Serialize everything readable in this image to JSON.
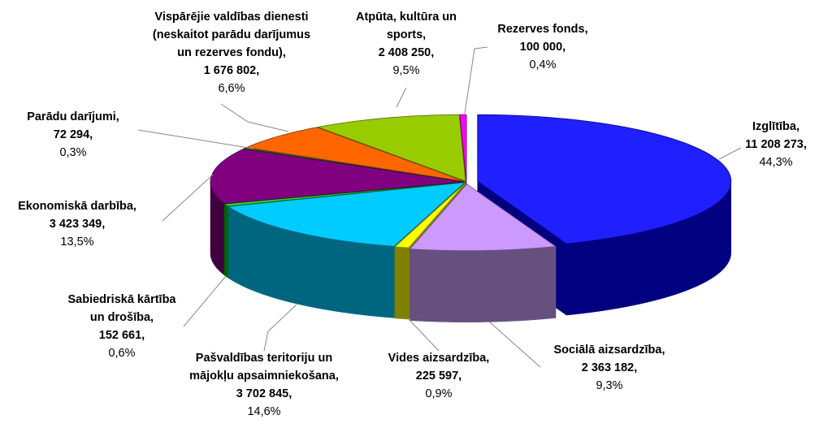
{
  "chart_data": {
    "type": "pie",
    "style": "3d-exploded",
    "start": "12 o'clock, clockwise",
    "slices": [
      {
        "label_lines": [
          "Izglītība,"
        ],
        "value": "11 208 273,",
        "percent": "44,3%",
        "pct": 44.3,
        "color": "#2020FF",
        "side": "#000080"
      },
      {
        "label_lines": [
          "Sociālā aizsardzība,"
        ],
        "value": "2 363 182,",
        "percent": "9,3%",
        "pct": 9.3,
        "color": "#CC99FF",
        "side": "#66507F"
      },
      {
        "label_lines": [
          "Vides aizsardzība,"
        ],
        "value": "225 597,",
        "percent": "0,9%",
        "pct": 0.9,
        "color": "#FFFF00",
        "side": "#808000"
      },
      {
        "label_lines": [
          "Pašvaldības teritoriju un",
          "mājokļu apsaimniekošana,"
        ],
        "value": "3 702 845,",
        "percent": "14,6%",
        "pct": 14.6,
        "color": "#00CCFF",
        "side": "#006680"
      },
      {
        "label_lines": [
          "Sabiedriskā kārtība",
          "un drošība,"
        ],
        "value": "152 661,",
        "percent": "0,6%",
        "pct": 0.6,
        "color": "#33CC33",
        "side": "#006600"
      },
      {
        "label_lines": [
          "Ekonomiskā darbība,"
        ],
        "value": "3 423 349,",
        "percent": "13,5%",
        "pct": 13.5,
        "color": "#800080",
        "side": "#400040"
      },
      {
        "label_lines": [
          "Parādu darījumi,"
        ],
        "value": "72 294,",
        "percent": "0,3%",
        "pct": 0.3,
        "color": "#336633",
        "side": "#1A331A"
      },
      {
        "label_lines": [
          "Vispārējie valdības dienesti",
          "(neskaitot parādu darījumus",
          "un rezerves fondu),"
        ],
        "value": "1 676 802,",
        "percent": "6,6%",
        "pct": 6.6,
        "color": "#FF6600",
        "side": "#803300"
      },
      {
        "label_lines": [
          "Atpūta, kultūra un",
          "sports,"
        ],
        "value": "2 408 250,",
        "percent": "9,5%",
        "pct": 9.5,
        "color": "#99CC00",
        "side": "#4D6600"
      },
      {
        "label_lines": [
          "Rezerves fonds,"
        ],
        "value": "100 000,",
        "percent": "0,4%",
        "pct": 0.4,
        "color": "#FF00FF",
        "side": "#800080"
      }
    ]
  }
}
